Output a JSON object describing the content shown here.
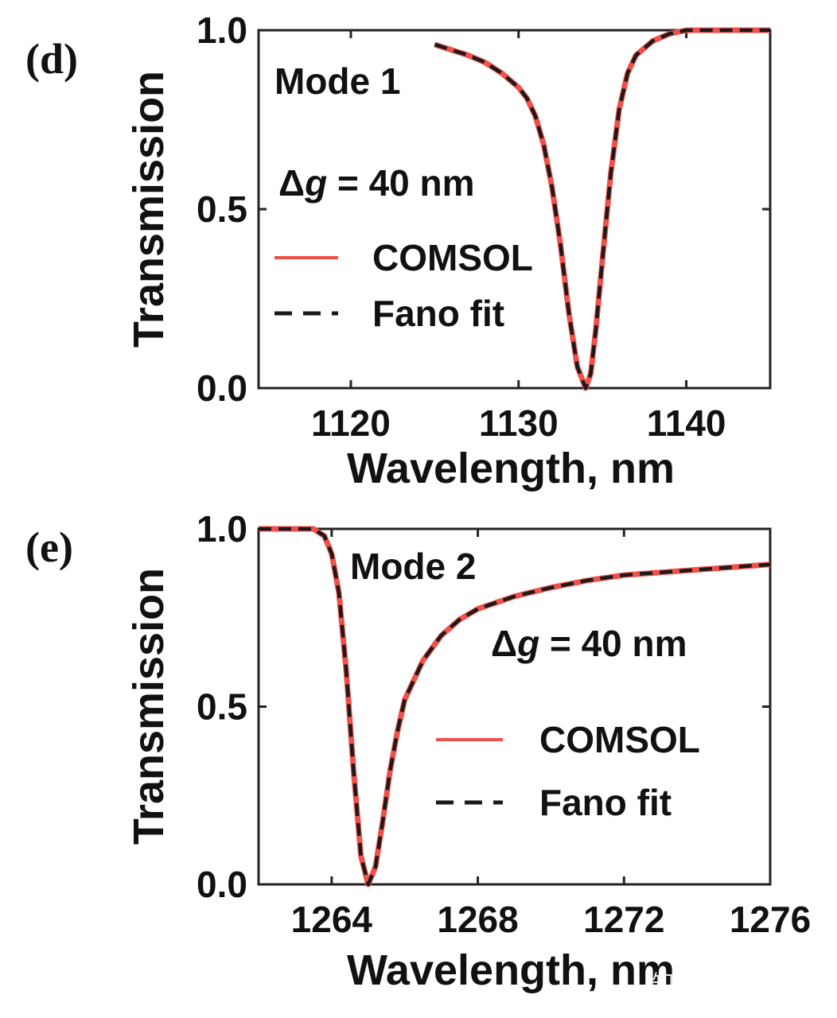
{
  "chart_data": [
    {
      "type": "line",
      "panel_label": "(d)",
      "annotation_title": "Mode 1",
      "annotation_delta_prefix": "Δ",
      "annotation_delta_var": "g",
      "annotation_delta_rest": " = 40 nm",
      "xlabel": "Wavelength, nm",
      "ylabel": "Transmission",
      "xlim": [
        1114.5,
        1145
      ],
      "ylim": [
        0,
        1
      ],
      "xticks": [
        1120,
        1130,
        1140
      ],
      "yticks": [
        0.0,
        0.5,
        1.0
      ],
      "ytick_labels": [
        "0.0",
        "0.5",
        "1.0"
      ],
      "legend_position": "center-left",
      "series": [
        {
          "name": "COMSOL",
          "color": "#f0504a",
          "style": "solid",
          "x": [
            1125,
            1127,
            1128,
            1129,
            1130,
            1130.5,
            1131,
            1131.5,
            1132,
            1132.5,
            1133,
            1133.5,
            1134,
            1134.3,
            1134.6,
            1135,
            1135.5,
            1136,
            1136.5,
            1137,
            1138,
            1139,
            1140,
            1142,
            1145
          ],
          "y": [
            0.96,
            0.93,
            0.91,
            0.88,
            0.84,
            0.81,
            0.76,
            0.68,
            0.56,
            0.4,
            0.21,
            0.06,
            0.0,
            0.04,
            0.16,
            0.36,
            0.6,
            0.78,
            0.88,
            0.93,
            0.97,
            0.99,
            1.0,
            1.0,
            1.0
          ]
        },
        {
          "name": "Fano fit",
          "color": "#1a1a1a",
          "style": "dashed",
          "x": [
            1125,
            1127,
            1128,
            1129,
            1130,
            1130.5,
            1131,
            1131.5,
            1132,
            1132.5,
            1133,
            1133.5,
            1134,
            1134.3,
            1134.6,
            1135,
            1135.5,
            1136,
            1136.5,
            1137,
            1138,
            1139,
            1140,
            1142,
            1145
          ],
          "y": [
            0.96,
            0.93,
            0.91,
            0.88,
            0.84,
            0.81,
            0.76,
            0.68,
            0.56,
            0.4,
            0.21,
            0.06,
            0.0,
            0.04,
            0.16,
            0.36,
            0.6,
            0.78,
            0.88,
            0.93,
            0.97,
            0.99,
            1.0,
            1.0,
            1.0
          ]
        }
      ]
    },
    {
      "type": "line",
      "panel_label": "(e)",
      "annotation_title": "Mode 2",
      "annotation_delta_prefix": "Δ",
      "annotation_delta_var": "g",
      "annotation_delta_rest": " = 40 nm",
      "xlabel": "Wavelength, nm",
      "ylabel": "Transmission",
      "xlim": [
        1262.0,
        1276
      ],
      "ylim": [
        0,
        1
      ],
      "xticks": [
        1264,
        1268,
        1272,
        1276
      ],
      "yticks": [
        0.0,
        0.5,
        1.0
      ],
      "ytick_labels": [
        "0.0",
        "0.5",
        "1.0"
      ],
      "legend_position": "center-right",
      "series": [
        {
          "name": "COMSOL",
          "color": "#f0504a",
          "style": "solid",
          "x": [
            1262.0,
            1263.0,
            1263.5,
            1263.8,
            1264.0,
            1264.2,
            1264.4,
            1264.6,
            1264.8,
            1265.0,
            1265.2,
            1265.4,
            1265.6,
            1265.8,
            1266.0,
            1266.5,
            1267.0,
            1267.5,
            1268.0,
            1269.0,
            1270.0,
            1271.0,
            1272.0,
            1274.0,
            1276.0
          ],
          "y": [
            1.0,
            1.0,
            1.0,
            0.98,
            0.93,
            0.82,
            0.6,
            0.32,
            0.08,
            0.0,
            0.05,
            0.18,
            0.32,
            0.43,
            0.52,
            0.63,
            0.7,
            0.745,
            0.775,
            0.81,
            0.835,
            0.855,
            0.87,
            0.885,
            0.9
          ]
        },
        {
          "name": "Fano fit",
          "color": "#1a1a1a",
          "style": "dashed",
          "x": [
            1262.0,
            1263.0,
            1263.5,
            1263.8,
            1264.0,
            1264.2,
            1264.4,
            1264.6,
            1264.8,
            1265.0,
            1265.2,
            1265.4,
            1265.6,
            1265.8,
            1266.0,
            1266.5,
            1267.0,
            1267.5,
            1268.0,
            1269.0,
            1270.0,
            1271.0,
            1272.0,
            1274.0,
            1276.0
          ],
          "y": [
            1.0,
            1.0,
            1.0,
            0.98,
            0.93,
            0.82,
            0.6,
            0.32,
            0.08,
            0.0,
            0.05,
            0.18,
            0.32,
            0.43,
            0.52,
            0.63,
            0.7,
            0.745,
            0.775,
            0.81,
            0.835,
            0.855,
            0.87,
            0.885,
            0.9
          ]
        }
      ]
    }
  ],
  "watermark": "知乎 @CAE320"
}
